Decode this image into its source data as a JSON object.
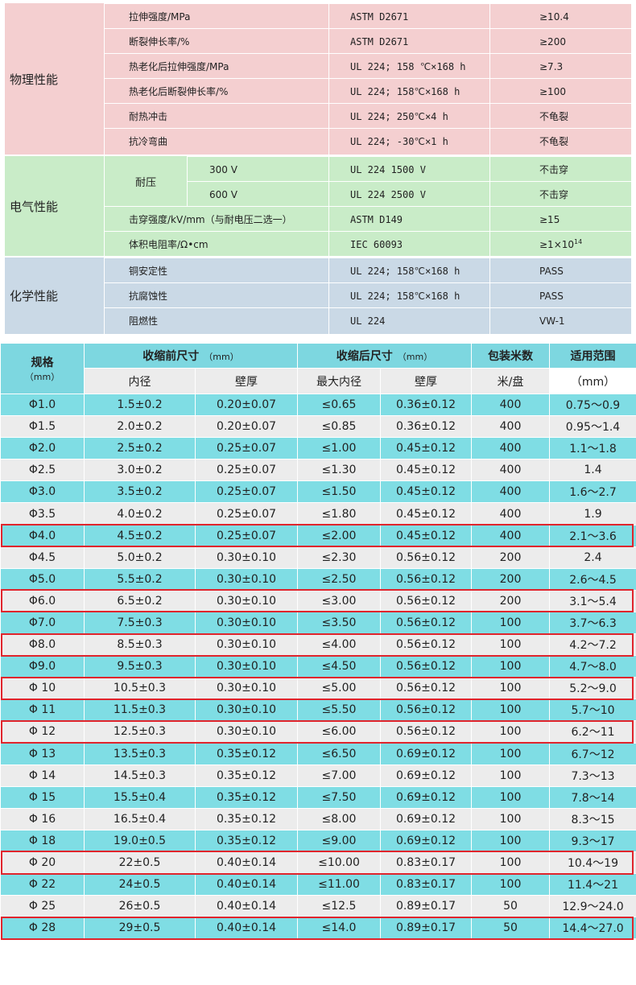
{
  "properties": {
    "physical": {
      "label": "物理性能",
      "rows": [
        {
          "name": "拉伸强度/MPa",
          "method": "ASTM D2671",
          "value": "≥10.4"
        },
        {
          "name": "断裂伸长率/%",
          "method": "ASTM D2671",
          "value": "≥200"
        },
        {
          "name": "热老化后拉伸强度/MPa",
          "method": "UL 224; 158 ℃×168 h",
          "value": "≥7.3"
        },
        {
          "name": "热老化后断裂伸长率/%",
          "method": "UL 224; 158℃×168 h",
          "value": "≥100"
        },
        {
          "name": "耐热冲击",
          "method": "UL 224; 250℃×4 h",
          "value": "不龟裂"
        },
        {
          "name": "抗冷弯曲",
          "method": "UL 224; -30℃×1 h",
          "value": "不龟裂"
        }
      ]
    },
    "electrical": {
      "label": "电气性能",
      "withstand_label": "耐压",
      "rows": [
        {
          "volt": "300 V",
          "method": "UL 224  1500 V",
          "value": "不击穿"
        },
        {
          "volt": "600 V",
          "method": "UL 224  2500 V",
          "value": "不击穿"
        },
        {
          "name": "击穿强度/kV/mm（与耐电压二选一）",
          "method": "ASTM D149",
          "value": "≥15"
        },
        {
          "name": "体积电阻率/Ω•cm",
          "method": "IEC 60093",
          "value_base": "≥1×10",
          "value_exp": "14"
        }
      ]
    },
    "chemical": {
      "label": "化学性能",
      "rows": [
        {
          "name": "铜安定性",
          "method": "UL 224; 158℃×168 h",
          "value": "PASS"
        },
        {
          "name": "抗腐蚀性",
          "method": "UL 224; 158℃×168 h",
          "value": "PASS"
        },
        {
          "name": "阻燃性",
          "method": "UL 224",
          "value": "VW-1"
        }
      ]
    }
  },
  "spec_table": {
    "headers": {
      "spec": "规格",
      "spec_unit": "（mm）",
      "before": "收缩前尺寸",
      "before_unit": "（mm）",
      "after": "收缩后尺寸",
      "after_unit": "（mm）",
      "pack": "包装米数",
      "apply": "适用范围",
      "inner": "内径",
      "wall": "壁厚",
      "max_inner": "最大内径",
      "wall2": "壁厚",
      "pack_unit": "米/盘",
      "apply_unit": "（mm）"
    },
    "rows": [
      [
        "Φ1.0",
        "1.5±0.2",
        "0.20±0.07",
        "≤0.65",
        "0.36±0.12",
        "400",
        "0.75～0.9"
      ],
      [
        "Φ1.5",
        "2.0±0.2",
        "0.20±0.07",
        "≤0.85",
        "0.36±0.12",
        "400",
        "0.95～1.4"
      ],
      [
        "Φ2.0",
        "2.5±0.2",
        "0.25±0.07",
        "≤1.00",
        "0.45±0.12",
        "400",
        "1.1～1.8"
      ],
      [
        "Φ2.5",
        "3.0±0.2",
        "0.25±0.07",
        "≤1.30",
        "0.45±0.12",
        "400",
        "1.4"
      ],
      [
        "Φ3.0",
        "3.5±0.2",
        "0.25±0.07",
        "≤1.50",
        "0.45±0.12",
        "400",
        "1.6～2.7"
      ],
      [
        "Φ3.5",
        "4.0±0.2",
        "0.25±0.07",
        "≤1.80",
        "0.45±0.12",
        "400",
        "1.9"
      ],
      [
        "Φ4.0",
        "4.5±0.2",
        "0.25±0.07",
        "≤2.00",
        "0.45±0.12",
        "400",
        "2.1～3.6"
      ],
      [
        "Φ4.5",
        "5.0±0.2",
        "0.30±0.10",
        "≤2.30",
        "0.56±0.12",
        "200",
        "2.4"
      ],
      [
        "Φ5.0",
        "5.5±0.2",
        "0.30±0.10",
        "≤2.50",
        "0.56±0.12",
        "200",
        "2.6～4.5"
      ],
      [
        "Φ6.0",
        "6.5±0.2",
        "0.30±0.10",
        "≤3.00",
        "0.56±0.12",
        "200",
        "3.1～5.4"
      ],
      [
        "Φ7.0",
        "7.5±0.3",
        "0.30±0.10",
        "≤3.50",
        "0.56±0.12",
        "100",
        "3.7～6.3"
      ],
      [
        "Φ8.0",
        "8.5±0.3",
        "0.30±0.10",
        "≤4.00",
        "0.56±0.12",
        "100",
        "4.2～7.2"
      ],
      [
        "Φ9.0",
        "9.5±0.3",
        "0.30±0.10",
        "≤4.50",
        "0.56±0.12",
        "100",
        "4.7～8.0"
      ],
      [
        "Φ 10",
        "10.5±0.3",
        "0.30±0.10",
        "≤5.00",
        "0.56±0.12",
        "100",
        "5.2～9.0"
      ],
      [
        "Φ 11",
        "11.5±0.3",
        "0.30±0.10",
        "≤5.50",
        "0.56±0.12",
        "100",
        "5.7～10"
      ],
      [
        "Φ 12",
        "12.5±0.3",
        "0.30±0.10",
        "≤6.00",
        "0.56±0.12",
        "100",
        "6.2～11"
      ],
      [
        "Φ 13",
        "13.5±0.3",
        "0.35±0.12",
        "≤6.50",
        "0.69±0.12",
        "100",
        "6.7～12"
      ],
      [
        "Φ 14",
        "14.5±0.3",
        "0.35±0.12",
        "≤7.00",
        "0.69±0.12",
        "100",
        "7.3～13"
      ],
      [
        "Φ 15",
        "15.5±0.4",
        "0.35±0.12",
        "≤7.50",
        "0.69±0.12",
        "100",
        "7.8～14"
      ],
      [
        "Φ 16",
        "16.5±0.4",
        "0.35±0.12",
        "≤8.00",
        "0.69±0.12",
        "100",
        "8.3～15"
      ],
      [
        "Φ 18",
        "19.0±0.5",
        "0.35±0.12",
        "≤9.00",
        "0.69±0.12",
        "100",
        "9.3～17"
      ],
      [
        "Φ 20",
        "22±0.5",
        "0.40±0.14",
        "≤10.00",
        "0.83±0.17",
        "100",
        "10.4～19"
      ],
      [
        "Φ 22",
        "24±0.5",
        "0.40±0.14",
        "≤11.00",
        "0.83±0.17",
        "100",
        "11.4～21"
      ],
      [
        "Φ 25",
        "26±0.5",
        "0.40±0.14",
        "≤12.5",
        "0.89±0.17",
        "50",
        "12.9～24.0"
      ],
      [
        "Φ 28",
        "29±0.5",
        "0.40±0.14",
        "≤14.0",
        "0.89±0.17",
        "50",
        "14.4～27.0"
      ]
    ],
    "row_colors": [
      "cyan",
      "gray",
      "cyan",
      "gray",
      "cyan",
      "gray",
      "cyan",
      "gray",
      "cyan",
      "gray",
      "cyan",
      "gray",
      "cyan",
      "gray",
      "cyan",
      "gray",
      "cyan",
      "gray",
      "cyan",
      "gray",
      "cyan",
      "gray",
      "cyan",
      "gray",
      "cyan"
    ],
    "highlighted_rows": [
      6,
      9,
      11,
      13,
      15,
      21,
      24
    ],
    "highlight_color": "#e0242c"
  }
}
